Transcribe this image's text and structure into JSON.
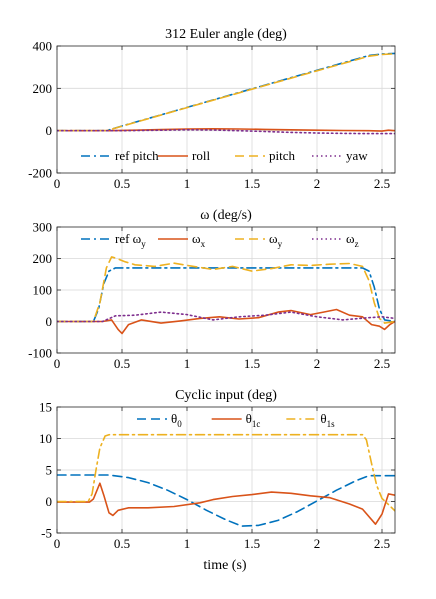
{
  "figure": {
    "xlabel": "time (s)"
  },
  "chart_data": [
    {
      "type": "line",
      "title": "312 Euler angle (deg)",
      "xlabel": "",
      "ylabel": "",
      "xlim": [
        0,
        2.6
      ],
      "ylim": [
        -200,
        400
      ],
      "xticks": [
        0,
        0.5,
        1,
        1.5,
        2,
        2.5
      ],
      "yticks": [
        -200,
        0,
        200,
        400
      ],
      "grid": true,
      "legend": {
        "placement": "bottom",
        "columns": 4
      },
      "series": [
        {
          "name": "ref pitch",
          "color": "#0072BD",
          "dash": "dashdot",
          "x": [
            0,
            0.38,
            0.5,
            1.0,
            1.5,
            2.0,
            2.4,
            2.5,
            2.6
          ],
          "y": [
            0,
            0,
            22,
            110,
            198,
            285,
            355,
            362,
            365
          ]
        },
        {
          "name": "roll",
          "color": "#D95319",
          "dash": "solid",
          "x": [
            0,
            0.4,
            0.6,
            0.8,
            1.0,
            1.2,
            1.4,
            1.6,
            1.8,
            2.0,
            2.2,
            2.4,
            2.5,
            2.55,
            2.6
          ],
          "y": [
            0,
            0,
            2,
            5,
            8,
            9,
            8,
            6,
            4,
            2,
            1,
            0,
            -2,
            2,
            0
          ]
        },
        {
          "name": "pitch",
          "color": "#EDB120",
          "dash": "dashed",
          "x": [
            0,
            0.38,
            0.5,
            1.0,
            1.5,
            2.0,
            2.4,
            2.5,
            2.6
          ],
          "y": [
            0,
            0,
            21,
            109,
            196,
            283,
            352,
            360,
            363
          ]
        },
        {
          "name": "yaw",
          "color": "#7E2F8E",
          "dash": "dotted",
          "x": [
            0,
            0.5,
            0.8,
            1.0,
            1.2,
            1.4,
            1.6,
            1.8,
            2.0,
            2.2,
            2.4,
            2.6
          ],
          "y": [
            0,
            0,
            2,
            4,
            3,
            0,
            -4,
            -8,
            -11,
            -13,
            -14,
            -14
          ]
        }
      ]
    },
    {
      "type": "line",
      "title": "ω (deg/s)",
      "xlabel": "",
      "ylabel": "",
      "xlim": [
        0,
        2.6
      ],
      "ylim": [
        -100,
        300
      ],
      "xticks": [
        0,
        0.5,
        1,
        1.5,
        2,
        2.5
      ],
      "yticks": [
        -100,
        0,
        100,
        200,
        300
      ],
      "grid": true,
      "legend": {
        "placement": "top",
        "columns": 4
      },
      "series": [
        {
          "name": "ref ωy",
          "label_main": "ref ω",
          "label_sub": "y",
          "color": "#0072BD",
          "dash": "dashdot",
          "x": [
            0,
            0.28,
            0.32,
            0.36,
            0.4,
            0.45,
            2.35,
            2.4,
            2.44,
            2.48,
            2.52,
            2.6
          ],
          "y": [
            0,
            0,
            40,
            120,
            160,
            170,
            170,
            160,
            110,
            40,
            5,
            0
          ]
        },
        {
          "name": "ωx",
          "label_main": "ω",
          "label_sub": "x",
          "color": "#D95319",
          "dash": "solid",
          "x": [
            0,
            0.35,
            0.42,
            0.47,
            0.5,
            0.55,
            0.65,
            0.8,
            0.95,
            1.1,
            1.25,
            1.4,
            1.55,
            1.7,
            1.8,
            1.95,
            2.05,
            2.15,
            2.25,
            2.35,
            2.42,
            2.48,
            2.52,
            2.56,
            2.6
          ],
          "y": [
            0,
            0,
            5,
            -25,
            -38,
            -10,
            5,
            -5,
            2,
            10,
            15,
            8,
            12,
            30,
            35,
            22,
            30,
            38,
            20,
            15,
            -10,
            -15,
            -25,
            -10,
            0
          ]
        },
        {
          "name": "ωy",
          "label_main": "ω",
          "label_sub": "y",
          "color": "#EDB120",
          "dash": "dashed",
          "x": [
            0,
            0.28,
            0.33,
            0.38,
            0.42,
            0.46,
            0.52,
            0.6,
            0.75,
            0.9,
            1.05,
            1.2,
            1.35,
            1.5,
            1.65,
            1.8,
            1.95,
            2.1,
            2.25,
            2.35,
            2.4,
            2.44,
            2.48,
            2.52,
            2.6
          ],
          "y": [
            0,
            0,
            60,
            170,
            205,
            200,
            190,
            180,
            175,
            185,
            175,
            165,
            175,
            160,
            168,
            180,
            178,
            182,
            184,
            175,
            130,
            60,
            10,
            -5,
            0
          ]
        },
        {
          "name": "ωz",
          "label_main": "ω",
          "label_sub": "z",
          "color": "#7E2F8E",
          "dash": "dotted",
          "x": [
            0,
            0.35,
            0.45,
            0.6,
            0.8,
            1.0,
            1.2,
            1.4,
            1.6,
            1.8,
            2.0,
            2.2,
            2.4,
            2.5,
            2.6
          ],
          "y": [
            0,
            0,
            18,
            20,
            30,
            22,
            5,
            15,
            20,
            30,
            15,
            5,
            12,
            15,
            10
          ]
        }
      ]
    },
    {
      "type": "line",
      "title": "Cyclic input (deg)",
      "xlabel": "time (s)",
      "ylabel": "",
      "xlim": [
        0,
        2.6
      ],
      "ylim": [
        -5,
        15
      ],
      "xticks": [
        0,
        0.5,
        1,
        1.5,
        2,
        2.5
      ],
      "yticks": [
        -5,
        0,
        5,
        10,
        15
      ],
      "grid": true,
      "legend": {
        "placement": "top",
        "columns": 3
      },
      "series": [
        {
          "name": "θ0",
          "label_main": "θ",
          "label_sub": "0",
          "color": "#0072BD",
          "dash": "dashed",
          "x": [
            0,
            0.4,
            0.55,
            0.7,
            0.85,
            1.0,
            1.15,
            1.3,
            1.42,
            1.55,
            1.7,
            1.85,
            2.0,
            2.15,
            2.3,
            2.4,
            2.6
          ],
          "y": [
            4.2,
            4.2,
            3.8,
            3.0,
            1.8,
            0.3,
            -1.4,
            -2.9,
            -3.9,
            -3.8,
            -3.0,
            -1.6,
            0.1,
            1.8,
            3.3,
            4.1,
            4.1
          ]
        },
        {
          "name": "θ1c",
          "label_main": "θ",
          "label_sub": "1c",
          "color": "#D95319",
          "dash": "solid",
          "x": [
            0,
            0.25,
            0.28,
            0.33,
            0.36,
            0.4,
            0.43,
            0.47,
            0.55,
            0.7,
            0.9,
            1.1,
            1.2,
            1.35,
            1.5,
            1.65,
            1.8,
            1.95,
            2.1,
            2.25,
            2.35,
            2.45,
            2.5,
            2.55,
            2.6
          ],
          "y": [
            -0.1,
            -0.1,
            0.4,
            2.9,
            1.0,
            -1.8,
            -2.2,
            -1.4,
            -1.0,
            -1.0,
            -0.8,
            -0.2,
            0.3,
            0.8,
            1.1,
            1.5,
            1.3,
            0.9,
            0.6,
            -0.4,
            -1.2,
            -3.6,
            -2.0,
            1.2,
            1.0
          ]
        },
        {
          "name": "θ1s",
          "label_main": "θ",
          "label_sub": "1s",
          "color": "#EDB120",
          "dash": "dashdot",
          "x": [
            0,
            0.24,
            0.27,
            0.3,
            0.33,
            0.37,
            0.4,
            1.0,
            2.0,
            2.35,
            2.38,
            2.42,
            2.46,
            2.5,
            2.55,
            2.6
          ],
          "y": [
            0,
            0,
            1.2,
            5.0,
            8.5,
            10.4,
            10.6,
            10.6,
            10.6,
            10.6,
            9.8,
            6.0,
            2.5,
            0.5,
            -0.5,
            -1.5
          ]
        }
      ]
    }
  ]
}
